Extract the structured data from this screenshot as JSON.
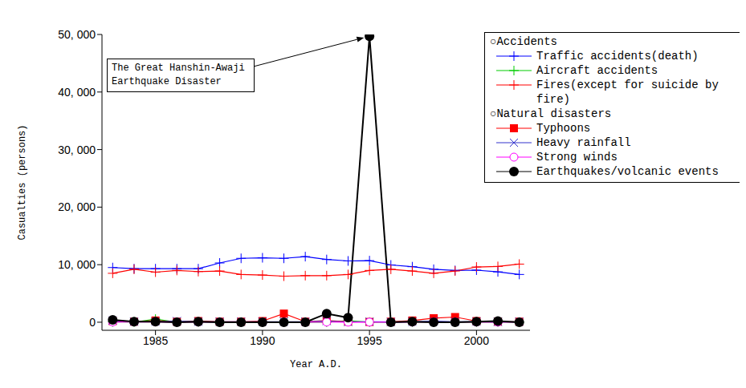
{
  "chart_data": {
    "type": "line",
    "annotation": "The Great Hanshin-Awaji Earthquake Disaster",
    "x_label": "Year A.D.",
    "y_label": "Casualties (persons)",
    "x": [
      1983,
      1984,
      1985,
      1986,
      1987,
      1988,
      1989,
      1990,
      1991,
      1992,
      1993,
      1994,
      1995,
      1996,
      1997,
      1998,
      1999,
      2000,
      2001,
      2002
    ],
    "xlim": [
      1982.5,
      2002.5
    ],
    "xticks": [
      1985,
      1990,
      1995,
      2000
    ],
    "ylim": [
      -1400,
      50000
    ],
    "yticks": [
      0,
      {
        "value": 10000,
        "label": "10, 000"
      },
      {
        "value": 20000,
        "label": "20, 000"
      },
      {
        "value": 30000,
        "label": "30, 000"
      },
      {
        "value": 40000,
        "label": "40, 000"
      },
      {
        "value": 50000,
        "label": "50, 000"
      }
    ],
    "grid": false,
    "series": [
      {
        "name": "Traffic accidents(death)",
        "group": "○Accidents",
        "color": "#0000ff",
        "marker": "plus",
        "values": [
          9500,
          9300,
          9300,
          9300,
          9300,
          10300,
          11100,
          11200,
          11100,
          11400,
          10900,
          10650,
          10700,
          9950,
          9650,
          9200,
          9000,
          9050,
          8750,
          8300
        ]
      },
      {
        "name": "Aircraft accidents",
        "group": "○Accidents",
        "color": "#00cc00",
        "marker": "plus",
        "values": [
          50,
          30,
          540,
          20,
          20,
          20,
          30,
          20,
          20,
          20,
          20,
          270,
          20,
          20,
          20,
          20,
          20,
          20,
          20,
          20
        ]
      },
      {
        "name": "Fires(except for suicide by fire)",
        "group": "○Accidents",
        "color": "#ff0000",
        "marker": "plus",
        "values": [
          8500,
          9200,
          8700,
          9000,
          8800,
          8900,
          8300,
          8200,
          8000,
          8100,
          8100,
          8300,
          9000,
          9200,
          8900,
          8500,
          8900,
          9600,
          9700,
          10100
        ]
      },
      {
        "name": "Typhoons",
        "group": "○Natural disasters",
        "color": "#ff0000",
        "marker": "square",
        "values": [
          200,
          100,
          300,
          100,
          200,
          100,
          100,
          200,
          1500,
          100,
          300,
          100,
          50,
          100,
          300,
          700,
          900,
          200,
          100,
          100
        ]
      },
      {
        "name": "Heavy rainfall",
        "group": "○Natural disasters",
        "color": "#3333cc",
        "marker": "x",
        "values": [
          300,
          100,
          100,
          200,
          100,
          100,
          100,
          100,
          100,
          100,
          200,
          50,
          100,
          50,
          100,
          200,
          100,
          100,
          50,
          100
        ]
      },
      {
        "name": "Strong winds",
        "group": "○Natural disasters",
        "color": "#ff00ff",
        "marker": "circle_open",
        "values": [
          50,
          30,
          50,
          20,
          20,
          20,
          20,
          20,
          50,
          20,
          30,
          20,
          20,
          20,
          20,
          30,
          50,
          20,
          20,
          20
        ]
      },
      {
        "name": "Earthquakes/volcanic events",
        "group": "○Natural disasters",
        "color": "#000000",
        "marker": "circle",
        "values": [
          400,
          100,
          100,
          0,
          100,
          0,
          0,
          0,
          0,
          0,
          1500,
          800,
          49700,
          0,
          100,
          0,
          0,
          100,
          200,
          0
        ]
      }
    ]
  }
}
